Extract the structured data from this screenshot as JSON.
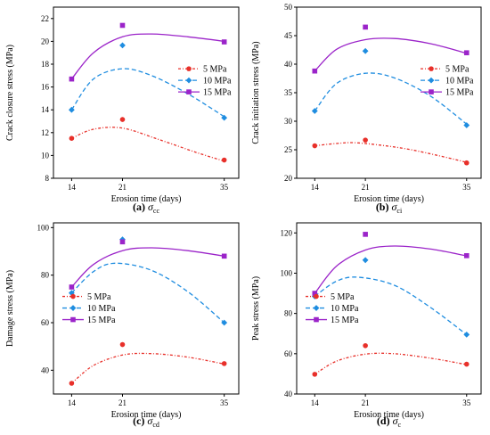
{
  "colors": {
    "s5": "#e8302a",
    "s10": "#1f8de0",
    "s15": "#9b24c9",
    "axis": "#000000"
  },
  "chart_data": [
    {
      "type": "line",
      "panel_letter": "(a)",
      "panel_symbol": "σ",
      "panel_sub": "cc",
      "xlabel": "Erosion time (days)",
      "ylabel": "Crack closure stress (MPa)",
      "x": [
        14,
        21,
        35
      ],
      "xlim": [
        11.5,
        37
      ],
      "ylim": [
        8,
        23
      ],
      "yticks": [
        8,
        10,
        12,
        14,
        16,
        18,
        20,
        22
      ],
      "legend_position": "right",
      "series": [
        {
          "name": "5 MPa",
          "values": [
            11.5,
            13.15,
            9.6
          ],
          "marker": "circle",
          "line": "dash-dot",
          "fit": [
            [
              14,
              11.5
            ],
            [
              17,
              12.3
            ],
            [
              21,
              12.4
            ],
            [
              26,
              11.4
            ],
            [
              31,
              10.3
            ],
            [
              35,
              9.5
            ]
          ]
        },
        {
          "name": "10 MPa",
          "values": [
            14.0,
            19.65,
            13.3
          ],
          "marker": "diamond",
          "line": "dash",
          "fit": [
            [
              14,
              14.0
            ],
            [
              17,
              16.7
            ],
            [
              21,
              17.6
            ],
            [
              25,
              17.0
            ],
            [
              30,
              15.4
            ],
            [
              35,
              13.4
            ]
          ]
        },
        {
          "name": "15 MPa",
          "values": [
            16.7,
            21.4,
            19.95
          ],
          "marker": "square",
          "line": "solid",
          "fit": [
            [
              14,
              16.7
            ],
            [
              17,
              19.0
            ],
            [
              21,
              20.4
            ],
            [
              25,
              20.65
            ],
            [
              30,
              20.4
            ],
            [
              35,
              20.0
            ]
          ]
        }
      ]
    },
    {
      "type": "line",
      "panel_letter": "(b)",
      "panel_symbol": "σ",
      "panel_sub": "ci",
      "xlabel": "Erosion time (days)",
      "ylabel": "Crack initiation stress (MPa)",
      "x": [
        14,
        21,
        35
      ],
      "xlim": [
        11.5,
        37
      ],
      "ylim": [
        20,
        50
      ],
      "yticks": [
        20,
        25,
        30,
        35,
        40,
        45,
        50
      ],
      "legend_position": "right",
      "series": [
        {
          "name": "5 MPa",
          "values": [
            25.7,
            26.7,
            22.7
          ],
          "marker": "circle",
          "line": "dash-dot",
          "fit": [
            [
              14,
              25.7
            ],
            [
              17,
              26.1
            ],
            [
              20,
              26.2
            ],
            [
              26,
              25.3
            ],
            [
              31,
              24.0
            ],
            [
              35,
              22.8
            ]
          ]
        },
        {
          "name": "10 MPa",
          "values": [
            31.8,
            42.3,
            29.3
          ],
          "marker": "diamond",
          "line": "dash",
          "fit": [
            [
              14,
              31.8
            ],
            [
              17,
              36.6
            ],
            [
              21,
              38.4
            ],
            [
              25,
              37.6
            ],
            [
              30,
              34.4
            ],
            [
              35,
              29.5
            ]
          ]
        },
        {
          "name": "15 MPa",
          "values": [
            38.8,
            46.5,
            42.0
          ],
          "marker": "square",
          "line": "solid",
          "fit": [
            [
              14,
              38.8
            ],
            [
              17,
              42.6
            ],
            [
              21,
              44.3
            ],
            [
              25,
              44.5
            ],
            [
              30,
              43.6
            ],
            [
              35,
              41.9
            ]
          ]
        }
      ]
    },
    {
      "type": "line",
      "panel_letter": "(c)",
      "panel_symbol": "σ",
      "panel_sub": "cd",
      "xlabel": "Erosion time (days)",
      "ylabel": "Damage stress (MPa)",
      "x": [
        14,
        21,
        35
      ],
      "xlim": [
        11.5,
        37
      ],
      "ylim": [
        30,
        102
      ],
      "yticks": [
        40,
        60,
        80,
        100
      ],
      "legend_position": "left",
      "series": [
        {
          "name": "5 MPa",
          "values": [
            34.5,
            50.8,
            42.8
          ],
          "marker": "circle",
          "line": "dash-dot",
          "fit": [
            [
              14,
              34.5
            ],
            [
              17,
              42.0
            ],
            [
              21,
              46.4
            ],
            [
              25,
              47.0
            ],
            [
              30,
              45.5
            ],
            [
              35,
              42.6
            ]
          ]
        },
        {
          "name": "10 MPa",
          "values": [
            72.5,
            95.0,
            60.0
          ],
          "marker": "diamond",
          "line": "dash",
          "fit": [
            [
              14,
              72.5
            ],
            [
              17,
              81.5
            ],
            [
              20,
              85.0
            ],
            [
              25,
              82.0
            ],
            [
              30,
              73.0
            ],
            [
              35,
              60.0
            ]
          ]
        },
        {
          "name": "15 MPa",
          "values": [
            75.0,
            94.0,
            88.0
          ],
          "marker": "square",
          "line": "solid",
          "fit": [
            [
              14,
              75.0
            ],
            [
              17,
              84.5
            ],
            [
              21,
              90.3
            ],
            [
              25,
              91.5
            ],
            [
              30,
              90.3
            ],
            [
              35,
              88.0
            ]
          ]
        }
      ]
    },
    {
      "type": "line",
      "panel_letter": "(d)",
      "panel_symbol": "σ",
      "panel_sub": "c",
      "xlabel": "Erosion time (days)",
      "ylabel": "Peak stress (MPa)",
      "x": [
        14,
        21,
        35
      ],
      "xlim": [
        11.5,
        37
      ],
      "ylim": [
        40,
        125
      ],
      "yticks": [
        40,
        60,
        80,
        100,
        120
      ],
      "legend_position": "left",
      "series": [
        {
          "name": "5 MPa",
          "values": [
            49.8,
            64.0,
            54.8
          ],
          "marker": "circle",
          "line": "dash-dot",
          "fit": [
            [
              14,
              49.8
            ],
            [
              17,
              56.3
            ],
            [
              21,
              59.8
            ],
            [
              25,
              60.0
            ],
            [
              30,
              57.8
            ],
            [
              35,
              54.6
            ]
          ]
        },
        {
          "name": "10 MPa",
          "values": [
            88.5,
            106.5,
            69.5
          ],
          "marker": "diamond",
          "line": "dash",
          "fit": [
            [
              14,
              88.5
            ],
            [
              17,
              96.0
            ],
            [
              20,
              98.0
            ],
            [
              25,
              94.0
            ],
            [
              30,
              83.0
            ],
            [
              35,
              69.5
            ]
          ]
        },
        {
          "name": "15 MPa",
          "values": [
            90.0,
            119.3,
            108.7
          ],
          "marker": "square",
          "line": "solid",
          "fit": [
            [
              14,
              90.0
            ],
            [
              17,
              103.5
            ],
            [
              21,
              111.5
            ],
            [
              25,
              113.5
            ],
            [
              30,
              112.0
            ],
            [
              35,
              108.6
            ]
          ]
        }
      ]
    }
  ]
}
